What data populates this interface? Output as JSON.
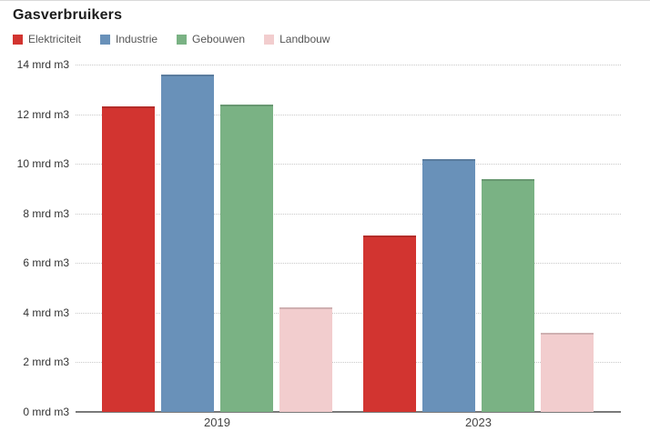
{
  "title": "Gasverbruikers",
  "colors": {
    "elektriciteit": "#d23430",
    "industrie": "#6991b9",
    "gebouwen": "#7ab284",
    "landbouw": "#f2cdce",
    "gridline": "#c9c9c9",
    "axis": "#7a7a7a",
    "title_text": "#1c1c1c",
    "legend_text": "#555555",
    "tick_text": "#333333"
  },
  "chart_data": {
    "type": "bar",
    "title": "Gasverbruikers",
    "categories": [
      "2019",
      "2023"
    ],
    "series": [
      {
        "name": "Elektriciteit",
        "color": "#d23430",
        "values": [
          12.3,
          7.1
        ]
      },
      {
        "name": "Industrie",
        "color": "#6991b9",
        "values": [
          13.6,
          10.2
        ]
      },
      {
        "name": "Gebouwen",
        "color": "#7ab284",
        "values": [
          12.4,
          9.4
        ]
      },
      {
        "name": "Landbouw",
        "color": "#f2cdce",
        "values": [
          4.2,
          3.2
        ]
      }
    ],
    "ylabel": "mrd m3",
    "ylim": [
      0,
      14
    ],
    "y_tick_step": 2,
    "y_ticks": [
      "0 mrd m3",
      "2 mrd m3",
      "4 mrd m3",
      "6 mrd m3",
      "8 mrd m3",
      "10 mrd m3",
      "12 mrd m3",
      "14 mrd m3"
    ],
    "grid": "horizontal-dotted",
    "legend_position": "top-left",
    "xlabel": ""
  }
}
